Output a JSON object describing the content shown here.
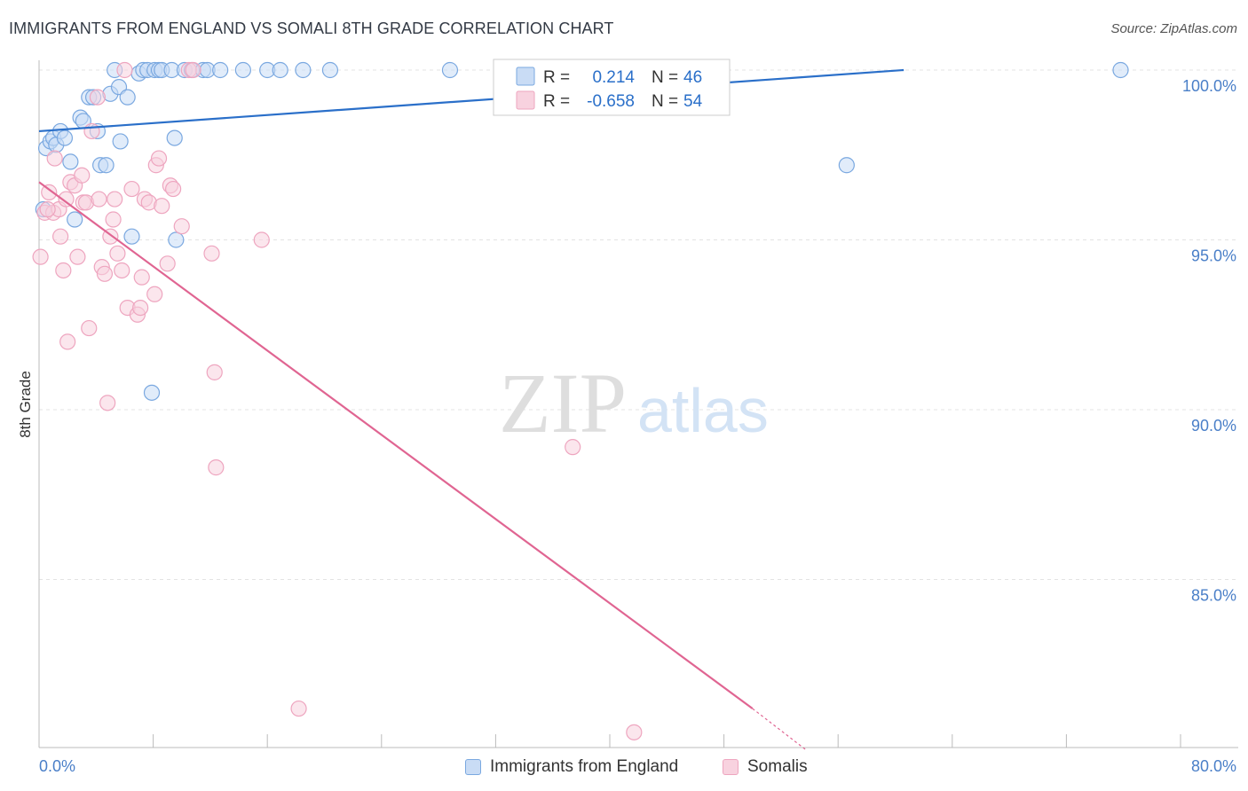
{
  "title": "IMMIGRANTS FROM ENGLAND VS SOMALI 8TH GRADE CORRELATION CHART",
  "source": "Source: ZipAtlas.com",
  "watermark": {
    "zip": "ZIP",
    "atlas": "atlas"
  },
  "chart_data": {
    "type": "scatter",
    "ylabel": "8th Grade",
    "xlim": [
      0,
      80
    ],
    "ylim": [
      80,
      100.5
    ],
    "x_tick_labels": [
      {
        "value": 0,
        "label": "0.0%"
      },
      {
        "value": 80,
        "label": "80.0%"
      }
    ],
    "y_tick_labels": [
      {
        "value": 100,
        "label": "100.0%"
      },
      {
        "value": 95,
        "label": "95.0%"
      },
      {
        "value": 90,
        "label": "90.0%"
      },
      {
        "value": 85,
        "label": "85.0%"
      }
    ],
    "grid": "horizontal-dashed",
    "legend_placement": "top-center",
    "series": [
      {
        "name": "Immigrants from England",
        "color": "#7aa8e0",
        "fill": "#c9dcf5",
        "line_color": "#2a6fc9",
        "R": "0.214",
        "N": "46",
        "trend": {
          "x": [
            0,
            60.6
          ],
          "y": [
            98.2,
            100
          ]
        },
        "points": [
          [
            0.3,
            95.9
          ],
          [
            0.5,
            97.7
          ],
          [
            0.8,
            97.9
          ],
          [
            1.0,
            98.0
          ],
          [
            1.2,
            97.8
          ],
          [
            1.5,
            98.2
          ],
          [
            1.8,
            98.0
          ],
          [
            2.2,
            97.3
          ],
          [
            2.5,
            95.6
          ],
          [
            2.9,
            98.6
          ],
          [
            3.1,
            98.5
          ],
          [
            3.5,
            99.2
          ],
          [
            3.8,
            99.2
          ],
          [
            4.1,
            98.2
          ],
          [
            4.3,
            97.2
          ],
          [
            4.7,
            97.2
          ],
          [
            5.0,
            99.3
          ],
          [
            5.3,
            100
          ],
          [
            5.6,
            99.5
          ],
          [
            5.7,
            97.9
          ],
          [
            6.2,
            99.2
          ],
          [
            6.5,
            95.1
          ],
          [
            7.0,
            99.9
          ],
          [
            7.3,
            100
          ],
          [
            7.6,
            100
          ],
          [
            7.9,
            90.5
          ],
          [
            8.1,
            100
          ],
          [
            8.4,
            100
          ],
          [
            8.6,
            100
          ],
          [
            9.3,
            100
          ],
          [
            9.5,
            98.0
          ],
          [
            9.6,
            95.0
          ],
          [
            10.2,
            100
          ],
          [
            10.7,
            100
          ],
          [
            11.5,
            100
          ],
          [
            11.8,
            100
          ],
          [
            12.7,
            100
          ],
          [
            14.3,
            100
          ],
          [
            16.0,
            100
          ],
          [
            16.9,
            100
          ],
          [
            18.5,
            100
          ],
          [
            20.4,
            100
          ],
          [
            28.8,
            100
          ],
          [
            32.6,
            100
          ],
          [
            56.6,
            97.2
          ],
          [
            75.8,
            100
          ]
        ]
      },
      {
        "name": "Somalis",
        "color": "#eea5bf",
        "fill": "#f8d2df",
        "line_color": "#e06592",
        "R": "-0.658",
        "N": "54",
        "trend": {
          "x": [
            0,
            50
          ],
          "y": [
            96.7,
            81.2
          ]
        },
        "trend_dashed": {
          "x": [
            50,
            53.7
          ],
          "y": [
            81.2,
            80.0
          ]
        },
        "points": [
          [
            0.1,
            94.5
          ],
          [
            0.4,
            95.8
          ],
          [
            0.7,
            96.4
          ],
          [
            1.0,
            95.8
          ],
          [
            1.1,
            97.4
          ],
          [
            1.4,
            95.9
          ],
          [
            1.5,
            95.1
          ],
          [
            1.7,
            94.1
          ],
          [
            1.9,
            96.2
          ],
          [
            2.0,
            92.0
          ],
          [
            2.2,
            96.7
          ],
          [
            2.5,
            96.6
          ],
          [
            2.7,
            94.5
          ],
          [
            3.0,
            96.9
          ],
          [
            3.1,
            96.1
          ],
          [
            3.3,
            96.1
          ],
          [
            3.5,
            92.4
          ],
          [
            3.7,
            98.2
          ],
          [
            4.1,
            99.2
          ],
          [
            4.2,
            96.2
          ],
          [
            4.4,
            94.2
          ],
          [
            4.6,
            94.0
          ],
          [
            4.8,
            90.2
          ],
          [
            5.0,
            95.1
          ],
          [
            5.2,
            95.6
          ],
          [
            5.3,
            96.2
          ],
          [
            5.5,
            94.6
          ],
          [
            5.8,
            94.1
          ],
          [
            6.0,
            100
          ],
          [
            6.2,
            93.0
          ],
          [
            6.5,
            96.5
          ],
          [
            6.9,
            92.8
          ],
          [
            7.1,
            93.0
          ],
          [
            7.2,
            93.9
          ],
          [
            7.4,
            96.2
          ],
          [
            7.7,
            96.1
          ],
          [
            8.1,
            93.4
          ],
          [
            8.2,
            97.2
          ],
          [
            8.4,
            97.4
          ],
          [
            8.6,
            96.0
          ],
          [
            9.0,
            94.3
          ],
          [
            9.2,
            96.6
          ],
          [
            9.4,
            96.5
          ],
          [
            10.0,
            95.4
          ],
          [
            10.5,
            100
          ],
          [
            10.8,
            100
          ],
          [
            12.1,
            94.6
          ],
          [
            12.3,
            91.1
          ],
          [
            12.4,
            88.3
          ],
          [
            15.6,
            95.0
          ],
          [
            18.2,
            81.2
          ],
          [
            37.4,
            88.9
          ],
          [
            41.7,
            80.5
          ],
          [
            0.6,
            95.9
          ]
        ]
      }
    ]
  },
  "legend": {
    "r_label": "R =",
    "n_label": "N ="
  }
}
